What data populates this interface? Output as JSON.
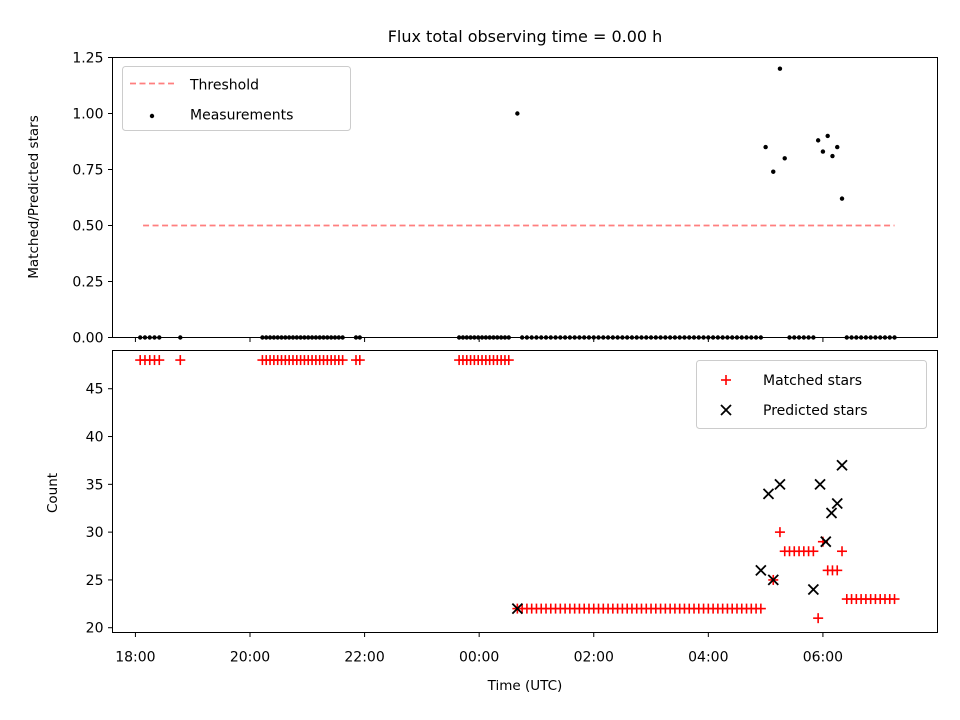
{
  "chart_data": [
    {
      "type": "scatter",
      "title": "Flux total observing time = 0.00 h",
      "xlabel": "",
      "ylabel": "Matched/Predicted stars",
      "x_axis": "time",
      "xlim": [
        "17:36",
        "08:00"
      ],
      "ylim": [
        0,
        1.25
      ],
      "yticks": [
        "0.00",
        "0.25",
        "0.50",
        "0.75",
        "1.00",
        "1.25"
      ],
      "legend_position": "top-left",
      "colors": {
        "threshold": "#ff7f7f",
        "measurements": "#000000"
      },
      "threshold": {
        "name": "Threshold",
        "value": 0.5,
        "x_range": [
          "18:08",
          "07:15"
        ]
      },
      "series": [
        {
          "name": "Measurements",
          "x": [
            "18:05",
            "18:10",
            "18:15",
            "18:20",
            "18:25",
            "18:47",
            "20:13",
            "20:17",
            "20:21",
            "20:25",
            "20:29",
            "20:33",
            "20:37",
            "20:41",
            "20:45",
            "20:49",
            "20:53",
            "20:57",
            "21:01",
            "21:05",
            "21:09",
            "21:13",
            "21:17",
            "21:21",
            "21:25",
            "21:29",
            "21:33",
            "21:37",
            "21:51",
            "21:55",
            "23:39",
            "23:43",
            "23:47",
            "23:51",
            "23:55",
            "23:59",
            "00:03",
            "00:07",
            "00:11",
            "00:15",
            "00:19",
            "00:23",
            "00:27",
            "00:31",
            "00:40",
            "00:45",
            "00:50",
            "00:55",
            "01:00",
            "01:05",
            "01:10",
            "01:15",
            "01:20",
            "01:25",
            "01:30",
            "01:35",
            "01:40",
            "01:45",
            "01:50",
            "01:55",
            "02:00",
            "02:05",
            "02:10",
            "02:15",
            "02:20",
            "02:25",
            "02:30",
            "02:35",
            "02:40",
            "02:45",
            "02:50",
            "02:55",
            "03:00",
            "03:05",
            "03:10",
            "03:15",
            "03:20",
            "03:25",
            "03:30",
            "03:35",
            "03:40",
            "03:45",
            "03:50",
            "03:55",
            "04:00",
            "04:05",
            "04:10",
            "04:15",
            "04:20",
            "04:25",
            "04:30",
            "04:35",
            "04:40",
            "04:45",
            "04:50",
            "04:55",
            "05:00",
            "05:08",
            "05:15",
            "05:20",
            "05:25",
            "05:30",
            "05:35",
            "05:40",
            "05:45",
            "05:50",
            "05:55",
            "06:00",
            "06:05",
            "06:10",
            "06:15",
            "06:20",
            "06:25",
            "06:30",
            "06:35",
            "06:40",
            "06:45",
            "06:50",
            "06:55",
            "07:00",
            "07:05",
            "07:10",
            "07:15"
          ],
          "y": [
            0,
            0,
            0,
            0,
            0,
            0,
            0,
            0,
            0,
            0,
            0,
            0,
            0,
            0,
            0,
            0,
            0,
            0,
            0,
            0,
            0,
            0,
            0,
            0,
            0,
            0,
            0,
            0,
            0,
            0,
            0,
            0,
            0,
            0,
            0,
            0,
            0,
            0,
            0,
            0,
            0,
            0,
            0,
            0,
            1.0,
            0,
            0,
            0,
            0,
            0,
            0,
            0,
            0,
            0,
            0,
            0,
            0,
            0,
            0,
            0,
            0,
            0,
            0,
            0,
            0,
            0,
            0,
            0,
            0,
            0,
            0,
            0,
            0,
            0,
            0,
            0,
            0,
            0,
            0,
            0,
            0,
            0,
            0,
            0,
            0,
            0,
            0,
            0,
            0,
            0,
            0,
            0,
            0,
            0,
            0,
            0,
            0.85,
            0.74,
            1.2,
            0.8,
            0,
            0,
            0,
            0,
            0,
            0,
            0.88,
            0.83,
            0.9,
            0.81,
            0.85,
            0.62,
            0,
            0,
            0,
            0,
            0,
            0,
            0,
            0,
            0,
            0,
            0
          ]
        }
      ]
    },
    {
      "type": "scatter",
      "title": "",
      "xlabel": "Time (UTC)",
      "ylabel": "Count",
      "x_axis": "time",
      "xlim": [
        "17:36",
        "08:00"
      ],
      "xticks": [
        "18:00",
        "20:00",
        "22:00",
        "00:00",
        "02:00",
        "04:00",
        "06:00"
      ],
      "ylim": [
        19.5,
        49
      ],
      "yticks": [
        "20",
        "25",
        "30",
        "35",
        "40",
        "45"
      ],
      "legend_position": "top-right",
      "colors": {
        "matched": "#ff0000",
        "predicted": "#000000"
      },
      "series": [
        {
          "name": "Matched stars",
          "marker": "plus",
          "x": [
            "18:05",
            "18:10",
            "18:15",
            "18:20",
            "18:25",
            "18:47",
            "20:13",
            "20:17",
            "20:21",
            "20:25",
            "20:29",
            "20:33",
            "20:37",
            "20:41",
            "20:45",
            "20:49",
            "20:53",
            "20:57",
            "21:01",
            "21:05",
            "21:09",
            "21:13",
            "21:17",
            "21:21",
            "21:25",
            "21:29",
            "21:33",
            "21:37",
            "21:51",
            "21:55",
            "23:39",
            "23:43",
            "23:47",
            "23:51",
            "23:55",
            "23:59",
            "00:03",
            "00:07",
            "00:11",
            "00:15",
            "00:19",
            "00:23",
            "00:27",
            "00:31",
            "00:40",
            "00:45",
            "00:50",
            "00:55",
            "01:00",
            "01:05",
            "01:10",
            "01:15",
            "01:20",
            "01:25",
            "01:30",
            "01:35",
            "01:40",
            "01:45",
            "01:50",
            "01:55",
            "02:00",
            "02:05",
            "02:10",
            "02:15",
            "02:20",
            "02:25",
            "02:30",
            "02:35",
            "02:40",
            "02:45",
            "02:50",
            "02:55",
            "03:00",
            "03:05",
            "03:10",
            "03:15",
            "03:20",
            "03:25",
            "03:30",
            "03:35",
            "03:40",
            "03:45",
            "03:50",
            "03:55",
            "04:00",
            "04:05",
            "04:10",
            "04:15",
            "04:20",
            "04:25",
            "04:30",
            "04:35",
            "04:40",
            "04:45",
            "04:50",
            "04:55",
            "05:08",
            "05:15",
            "05:20",
            "05:25",
            "05:30",
            "05:35",
            "05:40",
            "05:45",
            "05:50",
            "05:55",
            "06:00",
            "06:05",
            "06:10",
            "06:15",
            "06:20",
            "06:25",
            "06:30",
            "06:35",
            "06:40",
            "06:45",
            "06:50",
            "06:55",
            "07:00",
            "07:05",
            "07:10",
            "07:15"
          ],
          "y": [
            48,
            48,
            48,
            48,
            48,
            48,
            48,
            48,
            48,
            48,
            48,
            48,
            48,
            48,
            48,
            48,
            48,
            48,
            48,
            48,
            48,
            48,
            48,
            48,
            48,
            48,
            48,
            48,
            48,
            48,
            48,
            48,
            48,
            48,
            48,
            48,
            48,
            48,
            48,
            48,
            48,
            48,
            48,
            48,
            22,
            22,
            22,
            22,
            22,
            22,
            22,
            22,
            22,
            22,
            22,
            22,
            22,
            22,
            22,
            22,
            22,
            22,
            22,
            22,
            22,
            22,
            22,
            22,
            22,
            22,
            22,
            22,
            22,
            22,
            22,
            22,
            22,
            22,
            22,
            22,
            22,
            22,
            22,
            22,
            22,
            22,
            22,
            22,
            22,
            22,
            22,
            22,
            22,
            22,
            22,
            22,
            25,
            30,
            28,
            28,
            28,
            28,
            28,
            28,
            28,
            21,
            29,
            26,
            26,
            26,
            28,
            23,
            23,
            23,
            23,
            23,
            23,
            23,
            23,
            23,
            23,
            23
          ]
        },
        {
          "name": "Predicted stars",
          "marker": "x",
          "x": [
            "00:40",
            "04:55",
            "05:03",
            "05:08",
            "05:15",
            "05:50",
            "05:57",
            "06:03",
            "06:09",
            "06:15",
            "06:20"
          ],
          "y": [
            22,
            26,
            34,
            25,
            35,
            24,
            35,
            29,
            32,
            33,
            37
          ]
        }
      ]
    }
  ]
}
